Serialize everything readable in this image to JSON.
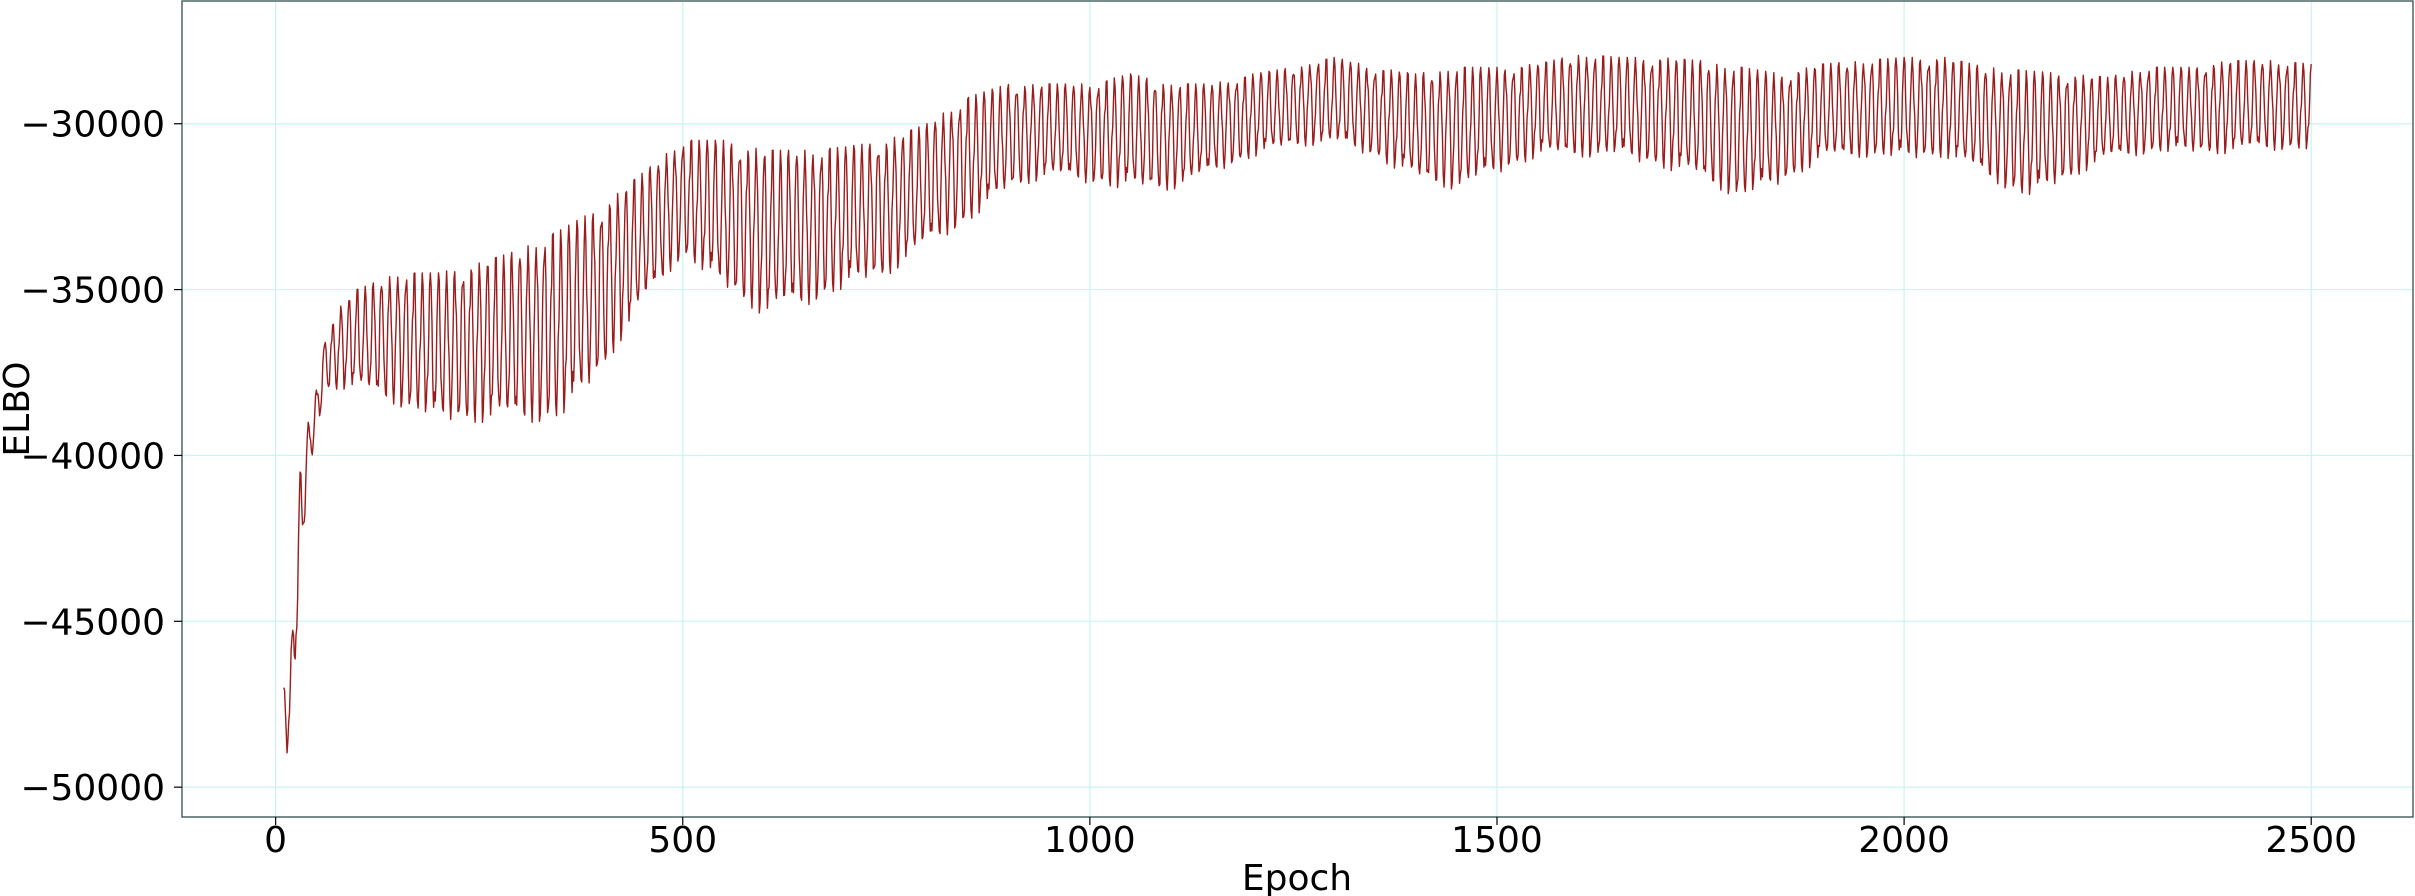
{
  "chart_data": {
    "type": "line",
    "title": "",
    "xlabel": "Epoch",
    "ylabel": "ELBO",
    "xlim": [
      -115,
      2625
    ],
    "ylim": [
      -50900,
      -26300
    ],
    "xticks": [
      0,
      500,
      1000,
      1500,
      2000,
      2500
    ],
    "yticks": [
      -50000,
      -45000,
      -40000,
      -35000,
      -30000
    ],
    "xtick_labels": [
      "0",
      "500",
      "1000",
      "1500",
      "2000",
      "2500"
    ],
    "ytick_labels": [
      "−50000",
      "−45000",
      "−40000",
      "−35000",
      "−30000"
    ],
    "grid": true,
    "grid_color": "#c8f4f4",
    "series": [
      {
        "color": "#9b1c1c",
        "oscillation_period_epochs": 10,
        "envelope_epochs": [
          10,
          20,
          30,
          40,
          50,
          60,
          80,
          100,
          150,
          200,
          250,
          300,
          350,
          400,
          450,
          500,
          550,
          600,
          650,
          700,
          750,
          800,
          850,
          900,
          950,
          1000,
          1050,
          1100,
          1150,
          1200,
          1250,
          1300,
          1350,
          1400,
          1450,
          1500,
          1550,
          1600,
          1650,
          1700,
          1750,
          1800,
          1850,
          1900,
          1950,
          2000,
          2050,
          2100,
          2150,
          2200,
          2250,
          2300,
          2350,
          2400,
          2450,
          2500
        ],
        "envelope_upper": [
          -47000,
          -45500,
          -40500,
          -39000,
          -38000,
          -36500,
          -35500,
          -35000,
          -34500,
          -34500,
          -34200,
          -33800,
          -33200,
          -32500,
          -31500,
          -30500,
          -30500,
          -30800,
          -30800,
          -30700,
          -30500,
          -30000,
          -29200,
          -28800,
          -28800,
          -28800,
          -28500,
          -28800,
          -28800,
          -28500,
          -28300,
          -28000,
          -28300,
          -28500,
          -28300,
          -28300,
          -28200,
          -27900,
          -28000,
          -28000,
          -28100,
          -28300,
          -28500,
          -28200,
          -28100,
          -28000,
          -28000,
          -28300,
          -28400,
          -28500,
          -28600,
          -28300,
          -28300,
          -28100,
          -28100,
          -28200
        ],
        "envelope_lower": [
          -49800,
          -48000,
          -44000,
          -40500,
          -39500,
          -38000,
          -38000,
          -38000,
          -38500,
          -39000,
          -39000,
          -39000,
          -39000,
          -37500,
          -35500,
          -34000,
          -35000,
          -35800,
          -35500,
          -35000,
          -34600,
          -33700,
          -33000,
          -32000,
          -31600,
          -31800,
          -32000,
          -32000,
          -31500,
          -31000,
          -30700,
          -30600,
          -31000,
          -31700,
          -32000,
          -31500,
          -31000,
          -31000,
          -31000,
          -31300,
          -31700,
          -32300,
          -31800,
          -31100,
          -31000,
          -31100,
          -31000,
          -31600,
          -32300,
          -31700,
          -31100,
          -30900,
          -30900,
          -30900,
          -30800,
          -30800
        ]
      }
    ]
  }
}
